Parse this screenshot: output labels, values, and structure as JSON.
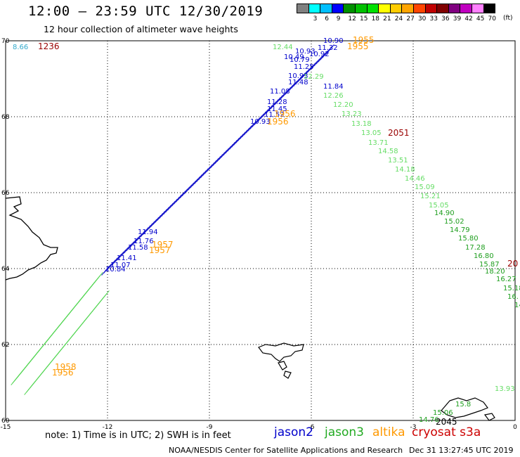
{
  "header": {
    "title": "12:00 – 23:59 UTC 12/30/2019",
    "subtitle": "12 hour collection of altimeter wave heights"
  },
  "colorbar": {
    "unit": "(ft)",
    "colors": [
      "#808080",
      "#00ffff",
      "#00bfff",
      "#0000ff",
      "#009000",
      "#00c000",
      "#00e000",
      "#ffff00",
      "#ffcc00",
      "#ffa500",
      "#ff4500",
      "#c00000",
      "#800000",
      "#800080",
      "#c000c0",
      "#ff80ff",
      "#000000"
    ],
    "labels": [
      "3",
      "6",
      "9",
      "12",
      "15",
      "18",
      "21",
      "24",
      "27",
      "30",
      "33",
      "36",
      "39",
      "42",
      "45",
      "70"
    ]
  },
  "axes": {
    "lon_ticks": [
      "-15",
      "-12",
      "-9",
      "-6",
      "-3",
      "0"
    ],
    "lat_ticks": [
      "70",
      "68",
      "66",
      "64",
      "62",
      "60"
    ],
    "lon_range": [
      -15,
      0
    ],
    "lat_range": [
      60,
      70
    ]
  },
  "legend": {
    "note": "note: 1) Time is in UTC; 2) SWH is in feet",
    "satellites": [
      {
        "name": "jason2",
        "color": "#0000cc"
      },
      {
        "name": "jason3",
        "color": "#22aa22"
      },
      {
        "name": "altika",
        "color": "#ff9900"
      },
      {
        "name": "cryosat s3a",
        "color": "#cc0000"
      }
    ]
  },
  "footer": {
    "credit": "NOAA/NESDIS Center for Satellite Applications and Research",
    "timestamp": "Dec 31 13:27:45 UTC 2019"
  },
  "map_labels": {
    "jason2_swh": [
      "10.90",
      "11.32",
      "10.92",
      "10.93",
      "10.49",
      "10.79",
      "11.25",
      "10.93",
      "11.48",
      "11.84",
      "11.08",
      "11.28",
      "11.45",
      "11.52",
      "10.93",
      "11.94",
      "11.76",
      "11.58",
      "11.41",
      "11.07",
      "10.84"
    ],
    "jason3_swh": [
      "12.44",
      "12.29",
      "12.26",
      "12.20",
      "13.23",
      "13.18",
      "13.05",
      "13.71",
      "14.58",
      "13.51",
      "14.18",
      "14.46",
      "15.09",
      "15.21",
      "15.05",
      "14.90",
      "15.02",
      "14.79",
      "15.80",
      "17.28",
      "16.80",
      "15.87",
      "18.20",
      "16.27",
      "15.18",
      "16.",
      "14.0",
      "13.93",
      "14.76",
      "15.06",
      "15.8"
    ],
    "other_swh": [
      "8.66"
    ],
    "time_tags": [
      {
        "text": "1955",
        "sat": "altika"
      },
      {
        "text": "1955",
        "sat": "altika"
      },
      {
        "text": "1956",
        "sat": "altika"
      },
      {
        "text": "1956",
        "sat": "altika"
      },
      {
        "text": "1957",
        "sat": "altika"
      },
      {
        "text": "1957",
        "sat": "altika"
      },
      {
        "text": "1958",
        "sat": "altika"
      },
      {
        "text": "1956",
        "sat": "altika"
      },
      {
        "text": "1236",
        "sat": "cryosat"
      },
      {
        "text": "2051",
        "sat": "cryosat"
      },
      {
        "text": "20",
        "sat": "cryosat"
      },
      {
        "text": "2045",
        "sat": "jason3"
      }
    ]
  }
}
